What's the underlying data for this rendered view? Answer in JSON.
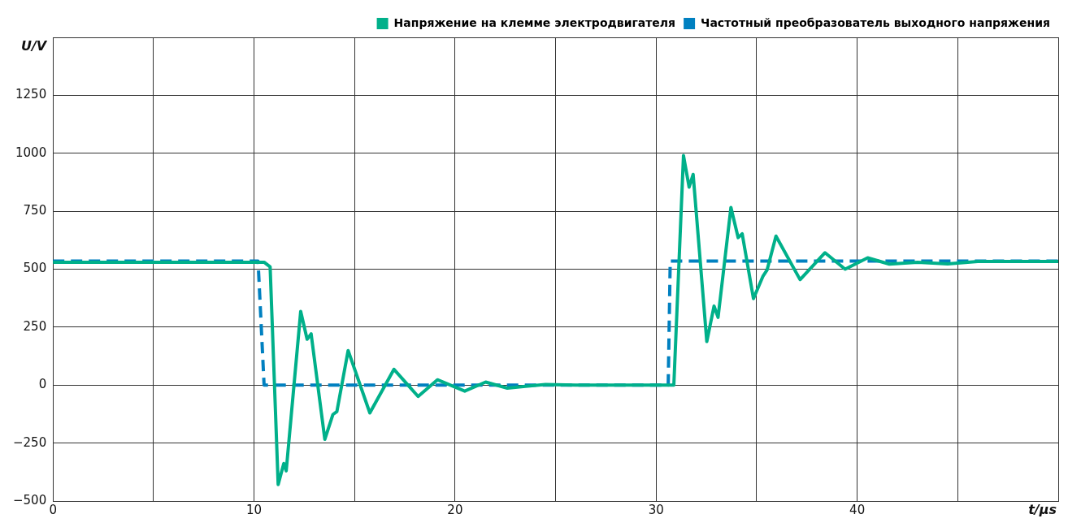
{
  "chart_data": {
    "type": "line",
    "xlabel": "t/µs",
    "ylabel": "U/V",
    "xlim": [
      0,
      50
    ],
    "xticks": [
      0,
      {
        "value": 5,
        "label": null
      },
      10,
      {
        "value": 15,
        "label": null
      },
      20,
      {
        "value": 25,
        "label": null
      },
      30,
      {
        "value": 35,
        "label": null
      },
      40,
      {
        "value": 45,
        "label": null
      },
      {
        "value": 50,
        "label": null
      }
    ],
    "ylim": [
      -500,
      1500
    ],
    "yticks": [
      -500,
      -250,
      0,
      250,
      500,
      750,
      1000,
      1250,
      {
        "value": 1500,
        "label": null
      }
    ],
    "grid": true,
    "legend": "top right",
    "marker": "none",
    "series": [
      {
        "name": "Напряжение на клемме электродвигателя",
        "color": "#00b08a",
        "line_style": "solid",
        "x": [
          0,
          10.5,
          10.8,
          11.2,
          11.48,
          11.6,
          12.32,
          12.64,
          12.84,
          13.52,
          13.92,
          14.12,
          14.68,
          15.76,
          16.96,
          18.16,
          19.12,
          20.48,
          21.52,
          22.6,
          23.5,
          24.5,
          26,
          30.5,
          30.88,
          31.36,
          31.64,
          31.84,
          32.52,
          32.88,
          33.08,
          33.72,
          34.08,
          34.28,
          34.84,
          35.32,
          35.52,
          35.96,
          37.16,
          38.4,
          39.4,
          40.52,
          41.6,
          43,
          44.5,
          46,
          50
        ],
        "values": [
          530,
          530,
          510,
          -429,
          -338,
          -370,
          318,
          198,
          221,
          -234,
          -127,
          -114,
          149,
          -120,
          68,
          -49,
          23,
          -26,
          13,
          -13,
          -5,
          3,
          0,
          0,
          0,
          990,
          854,
          909,
          188,
          341,
          292,
          766,
          636,
          653,
          373,
          471,
          497,
          643,
          455,
          571,
          500,
          549,
          522,
          530,
          523,
          533,
          533
        ]
      },
      {
        "name": "Частотный преобразователь выходного напряжения",
        "color": "#0080c0",
        "line_style": "dashed",
        "x": [
          0,
          10.2,
          10.5,
          30.6,
          30.7,
          50
        ],
        "values": [
          535,
          535,
          0,
          0,
          535,
          535
        ]
      }
    ]
  }
}
